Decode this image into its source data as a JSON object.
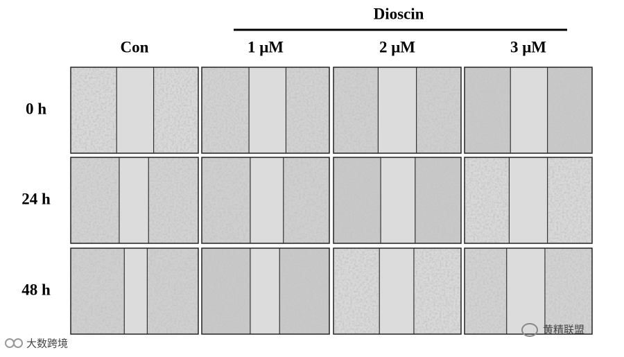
{
  "header": {
    "group_label": "Dioscin",
    "columns": [
      "Con",
      "1 μM",
      "2 μM",
      "3 μM"
    ]
  },
  "rows": [
    "0 h",
    "24 h",
    "48 h"
  ],
  "watermarks": [
    "大数跨境",
    "黄精联盟"
  ]
}
